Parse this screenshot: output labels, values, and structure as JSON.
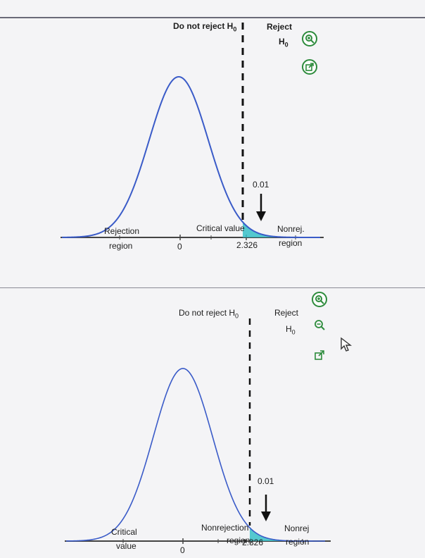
{
  "colors": {
    "curve": "#3a5bc8",
    "shade": "#37c0c8",
    "icon": "#2d8b3c",
    "axis": "#444444"
  },
  "icons": [
    "zoom-in-icon",
    "zoom-out-icon",
    "popout-icon",
    "mouse-cursor-icon"
  ],
  "top_graph": {
    "do_not_reject": "Do not reject H",
    "reject_line1": "Reject",
    "reject_line2": "H",
    "h_sub": "0",
    "alpha": "0.01",
    "left_label_1": "Rejection",
    "left_label_2": "region",
    "middle_label": "Critical value",
    "right_label_1": "Nonrej.",
    "right_label_2": "region",
    "tick_zero": "0",
    "tick_crit": "2.326"
  },
  "bottom_graph": {
    "do_not_reject": "Do not reject H",
    "reject_line1": "Reject",
    "reject_line2": "H",
    "h_sub": "0",
    "alpha": "0.01",
    "left_label_1": "Critical",
    "left_label_2": "value",
    "middle_label_1": "Nonrejection",
    "middle_label_2": "region",
    "right_label_1": "Nonrej",
    "right_label_2": "region",
    "tick_zero": "0",
    "tick_crit": "2.326"
  }
}
